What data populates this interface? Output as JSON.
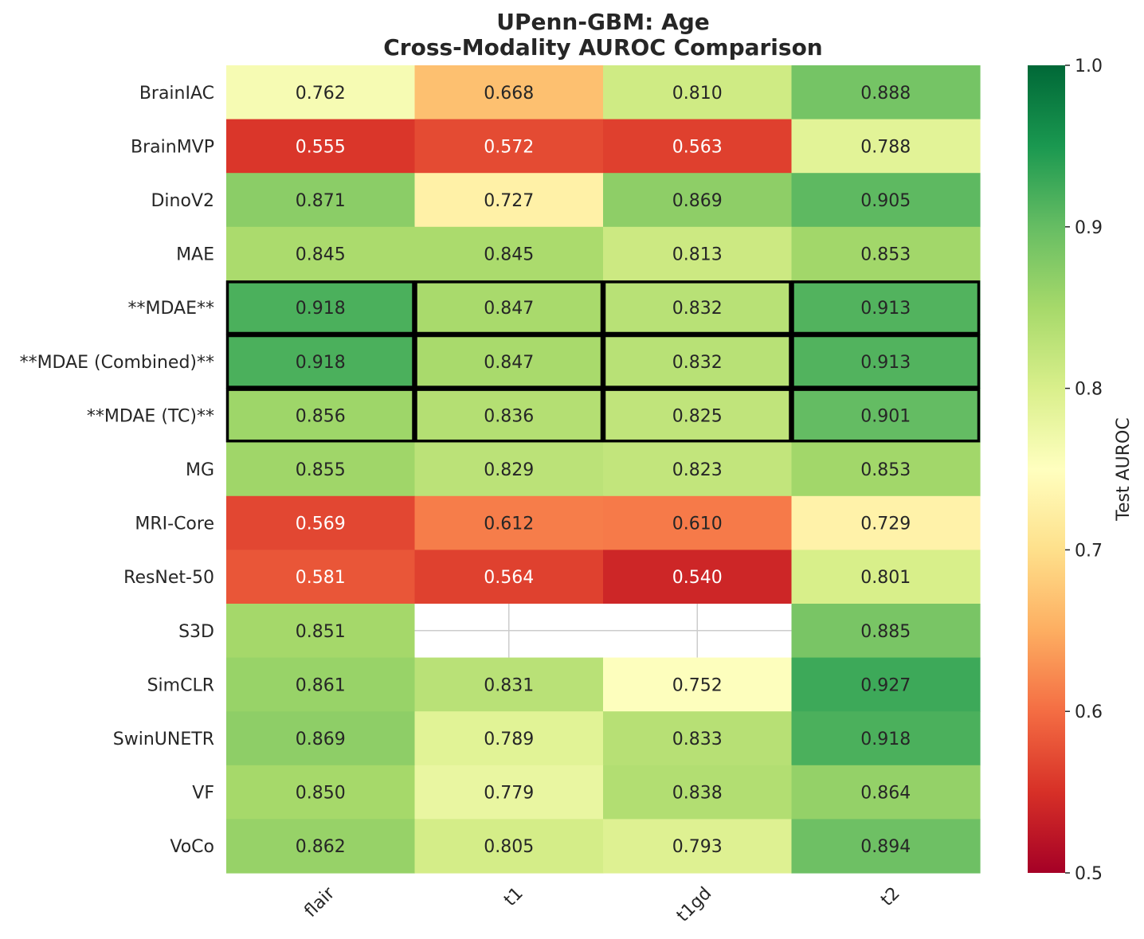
{
  "chart_data": {
    "type": "heatmap",
    "title_line1": "UPenn-GBM: Age",
    "title_line2": "Cross-Modality AUROC Comparison",
    "columns": [
      "flair",
      "t1",
      "t1gd",
      "t2"
    ],
    "rows": [
      {
        "label": "BrainIAC",
        "values": [
          0.762,
          0.668,
          0.81,
          0.888
        ],
        "highlight": false
      },
      {
        "label": "BrainMVP",
        "values": [
          0.555,
          0.572,
          0.563,
          0.788
        ],
        "highlight": false
      },
      {
        "label": "DinoV2",
        "values": [
          0.871,
          0.727,
          0.869,
          0.905
        ],
        "highlight": false
      },
      {
        "label": "MAE",
        "values": [
          0.845,
          0.845,
          0.813,
          0.853
        ],
        "highlight": false
      },
      {
        "label": "**MDAE**",
        "values": [
          0.918,
          0.847,
          0.832,
          0.913
        ],
        "highlight": true
      },
      {
        "label": "**MDAE (Combined)**",
        "values": [
          0.918,
          0.847,
          0.832,
          0.913
        ],
        "highlight": true
      },
      {
        "label": "**MDAE (TC)**",
        "values": [
          0.856,
          0.836,
          0.825,
          0.901
        ],
        "highlight": true
      },
      {
        "label": "MG",
        "values": [
          0.855,
          0.829,
          0.823,
          0.853
        ],
        "highlight": false
      },
      {
        "label": "MRI-Core",
        "values": [
          0.569,
          0.612,
          0.61,
          0.729
        ],
        "highlight": false
      },
      {
        "label": "ResNet-50",
        "values": [
          0.581,
          0.564,
          0.54,
          0.801
        ],
        "highlight": false
      },
      {
        "label": "S3D",
        "values": [
          0.851,
          null,
          null,
          0.885
        ],
        "highlight": false
      },
      {
        "label": "SimCLR",
        "values": [
          0.861,
          0.831,
          0.752,
          0.927
        ],
        "highlight": false
      },
      {
        "label": "SwinUNETR",
        "values": [
          0.869,
          0.789,
          0.833,
          0.918
        ],
        "highlight": false
      },
      {
        "label": "VF",
        "values": [
          0.85,
          0.779,
          0.838,
          0.864
        ],
        "highlight": false
      },
      {
        "label": "VoCo",
        "values": [
          0.862,
          0.805,
          0.793,
          0.894
        ],
        "highlight": false
      }
    ],
    "colorbar": {
      "label": "Test AUROC",
      "range": [
        0.5,
        1.0
      ],
      "ticks": [
        "0.5",
        "0.6",
        "0.7",
        "0.8",
        "0.9",
        "1.0"
      ],
      "colormap": "RdYlGn"
    }
  }
}
